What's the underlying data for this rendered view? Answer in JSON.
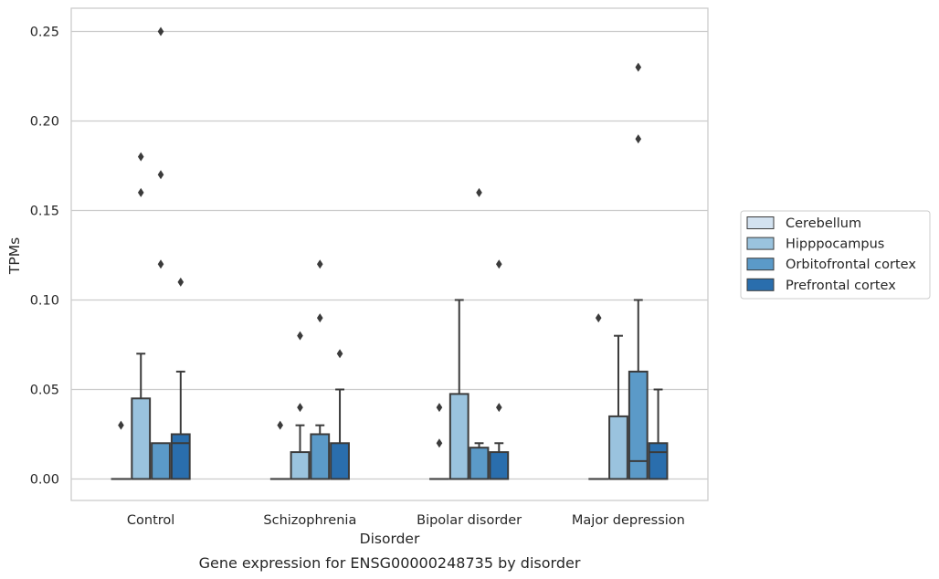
{
  "chart_data": {
    "type": "boxplot",
    "xlabel": "Disorder",
    "ylabel": "TPMs",
    "caption": "Gene expression for ENSG00000248735 by disorder",
    "ylim": [
      -0.012,
      0.263
    ],
    "yticks": [
      0.0,
      0.05,
      0.1,
      0.15,
      0.2,
      0.25
    ],
    "ytick_labels": [
      "0.00",
      "0.05",
      "0.10",
      "0.15",
      "0.20",
      "0.25"
    ],
    "grid": "horizontal",
    "legend_position": "right",
    "categories": [
      "Control",
      "Schizophrenia",
      "Bipolar disorder",
      "Major depression"
    ],
    "series": [
      {
        "name": "Cerebellum",
        "color": "#d3e2f0",
        "boxes": [
          {
            "q1": 0,
            "median": 0,
            "q3": 0,
            "whislo": 0,
            "whishi": 0,
            "fliers": [
              0.03
            ]
          },
          {
            "q1": 0,
            "median": 0,
            "q3": 0,
            "whislo": 0,
            "whishi": 0,
            "fliers": [
              0.03
            ]
          },
          {
            "q1": 0,
            "median": 0,
            "q3": 0,
            "whislo": 0,
            "whishi": 0,
            "fliers": [
              0.02,
              0.04
            ]
          },
          {
            "q1": 0,
            "median": 0,
            "q3": 0,
            "whislo": 0,
            "whishi": 0,
            "fliers": [
              0.09
            ]
          }
        ]
      },
      {
        "name": "Hipppocampus",
        "color": "#9ac3de",
        "boxes": [
          {
            "q1": 0,
            "median": 0,
            "q3": 0.045,
            "whislo": 0,
            "whishi": 0.07,
            "fliers": [
              0.16,
              0.18
            ]
          },
          {
            "q1": 0,
            "median": 0,
            "q3": 0.015,
            "whislo": 0,
            "whishi": 0.03,
            "fliers": [
              0.04,
              0.08
            ]
          },
          {
            "q1": 0,
            "median": 0,
            "q3": 0.0475,
            "whislo": 0,
            "whishi": 0.1,
            "fliers": []
          },
          {
            "q1": 0,
            "median": 0,
            "q3": 0.035,
            "whislo": 0,
            "whishi": 0.08,
            "fliers": []
          }
        ]
      },
      {
        "name": "Orbitofrontal cortex",
        "color": "#5b9ac8",
        "boxes": [
          {
            "q1": 0,
            "median": 0,
            "q3": 0.02,
            "whislo": 0,
            "whishi": 0.02,
            "fliers": [
              0.12,
              0.17,
              0.25
            ]
          },
          {
            "q1": 0,
            "median": 0,
            "q3": 0.025,
            "whislo": 0,
            "whishi": 0.03,
            "fliers": [
              0.09,
              0.12
            ]
          },
          {
            "q1": 0,
            "median": 0,
            "q3": 0.0175,
            "whislo": 0,
            "whishi": 0.02,
            "fliers": [
              0.16
            ]
          },
          {
            "q1": 0,
            "median": 0.01,
            "q3": 0.06,
            "whislo": 0,
            "whishi": 0.1,
            "fliers": [
              0.19,
              0.23
            ]
          }
        ]
      },
      {
        "name": "Prefrontal cortex",
        "color": "#2a6ead",
        "boxes": [
          {
            "q1": 0,
            "median": 0.02,
            "q3": 0.025,
            "whislo": 0,
            "whishi": 0.06,
            "fliers": [
              0.11
            ]
          },
          {
            "q1": 0,
            "median": 0,
            "q3": 0.02,
            "whislo": 0,
            "whishi": 0.05,
            "fliers": [
              0.07
            ]
          },
          {
            "q1": 0,
            "median": 0,
            "q3": 0.015,
            "whislo": 0,
            "whishi": 0.02,
            "fliers": [
              0.04,
              0.12
            ]
          },
          {
            "q1": 0,
            "median": 0.015,
            "q3": 0.02,
            "whislo": 0,
            "whishi": 0.05,
            "fliers": []
          }
        ]
      }
    ]
  }
}
